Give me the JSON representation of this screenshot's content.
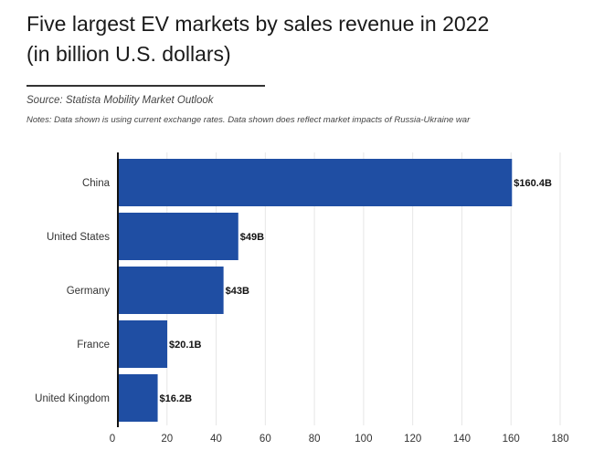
{
  "header": {
    "title_line1": "Five largest EV markets by sales revenue in 2022",
    "title_line2": "(in billion U.S. dollars)",
    "source": "Source: Statista Mobility Market Outlook",
    "notes": "Notes: Data shown is using current exchange rates. Data shown does reflect market impacts of Russia-Ukraine war"
  },
  "colors": {
    "bar": "#1f4ea3",
    "axis": "#111111",
    "grid": "#e6e6e6"
  },
  "chart_data": {
    "type": "bar",
    "orientation": "horizontal",
    "title": "Five largest EV markets by sales revenue in 2022 (in billion U.S. dollars)",
    "xlabel": "",
    "ylabel": "",
    "categories": [
      "China",
      "United States",
      "Germany",
      "France",
      "United Kingdom"
    ],
    "values": [
      160.4,
      49,
      43,
      20.1,
      16.2
    ],
    "data_labels": [
      "$160.4B",
      "$49B",
      "$43B",
      "$20.1B",
      "$16.2B"
    ],
    "xlim": [
      0,
      180
    ],
    "xticks": [
      0,
      20,
      40,
      60,
      80,
      100,
      120,
      140,
      160,
      180
    ],
    "grid": true
  }
}
